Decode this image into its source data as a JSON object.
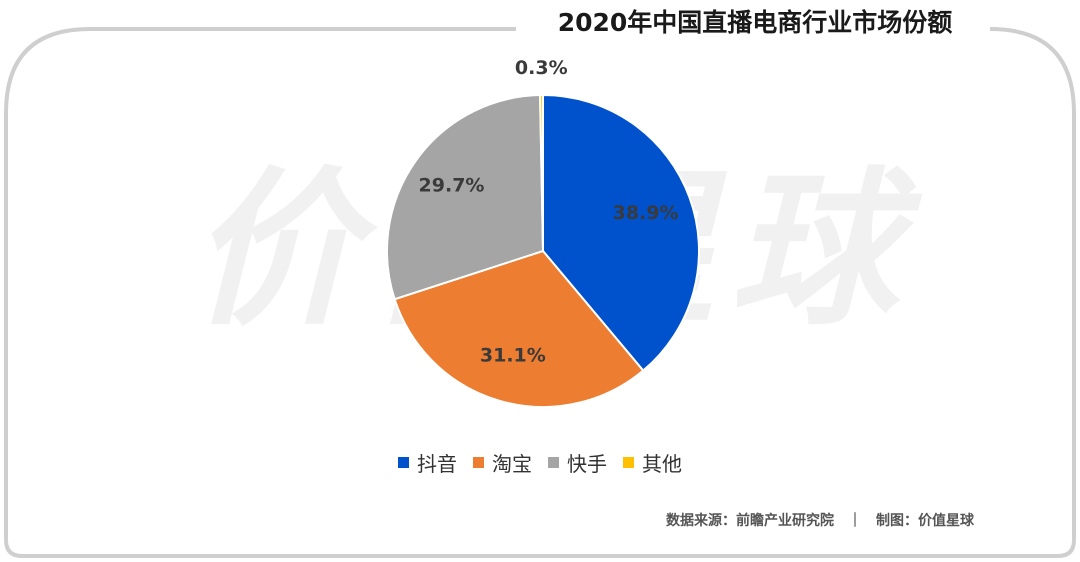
{
  "header": {
    "title": "2020年中国直播电商行业市场份额"
  },
  "watermark": "价值星球",
  "footer": {
    "source": "数据来源：前瞻产业研究院　｜　制图：价值星球"
  },
  "colors": {
    "frame": "#cfcfcf",
    "slice_edge": "#ffffff"
  },
  "chart_data": {
    "type": "pie",
    "title": "2020年中国直播电商行业市场份额",
    "legend_position": "bottom",
    "slices": [
      {
        "label": "抖音",
        "value": 38.9,
        "display": "38.9%",
        "color": "#0052cc"
      },
      {
        "label": "淘宝",
        "value": 31.1,
        "display": "31.1%",
        "color": "#ed7d31"
      },
      {
        "label": "快手",
        "value": 29.7,
        "display": "29.7%",
        "color": "#a5a5a5"
      },
      {
        "label": "其他",
        "value": 0.3,
        "display": "0.3%",
        "color": "#ffc000"
      }
    ]
  }
}
